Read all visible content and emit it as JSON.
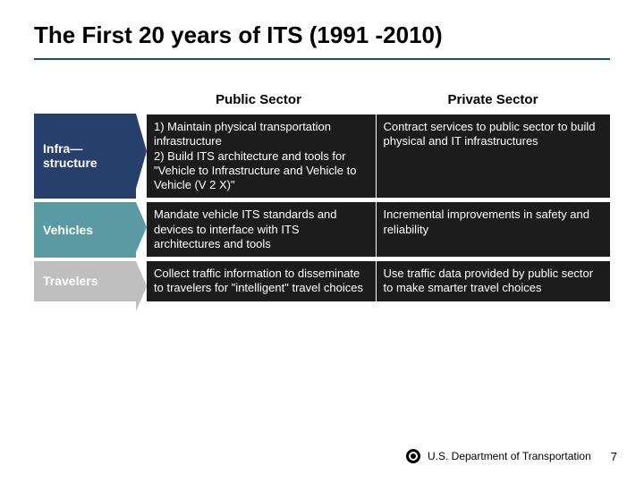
{
  "title": "The First 20 years of ITS (1991 -2010)",
  "columns": {
    "left": "Public Sector",
    "right": "Private Sector"
  },
  "rows": [
    {
      "label": "Infra—structure",
      "label_bg": "#27406b",
      "arrow_color": "#27406b",
      "public": "1) Maintain physical transportation infrastructure\n2) Build ITS architecture and tools for \"Vehicle to Infrastructure and Vehicle to Vehicle (V 2 X)\"",
      "private": "Contract services to public sector to build physical and IT infrastructures"
    },
    {
      "label": "Vehicles",
      "label_bg": "#5a9aa3",
      "arrow_color": "#5a9aa3",
      "public": "Mandate vehicle ITS standards and devices to interface with ITS architectures and tools",
      "private": "Incremental improvements in safety and reliability"
    },
    {
      "label": "Travelers",
      "label_bg": "#bfbfbf",
      "arrow_color": "#bfbfbf",
      "public": "Collect traffic information to disseminate to travelers for \"intelligent\" travel choices",
      "private": "Use traffic data provided by public sector to make smarter travel choices"
    }
  ],
  "footer": {
    "org": "U.S. Department of Transportation",
    "page": "7"
  },
  "style": {
    "title_color": "#000000",
    "rule_color": "#1a5276",
    "cell_bg": "#1c1c1c",
    "cell_text": "#ffffff"
  }
}
